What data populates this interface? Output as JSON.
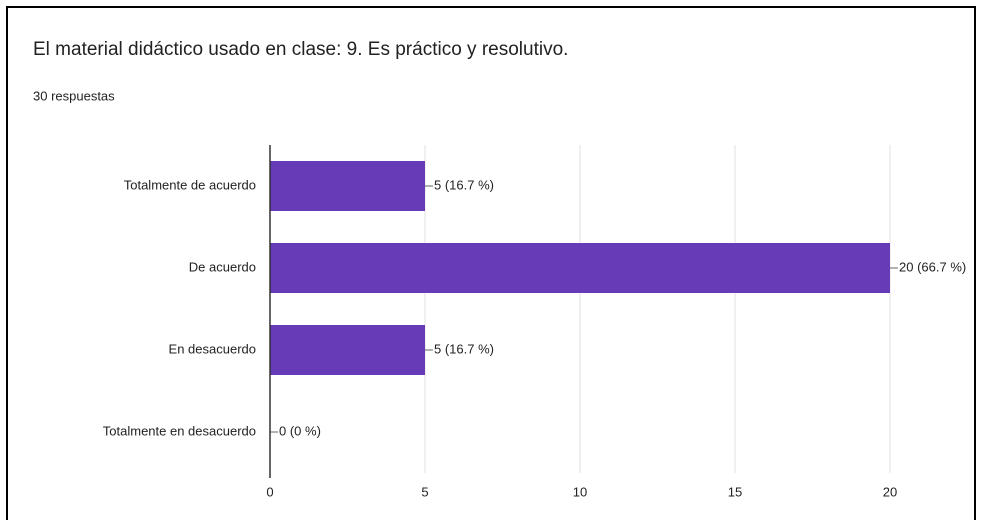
{
  "chart_data": {
    "type": "bar",
    "orientation": "horizontal",
    "title": "El material didáctico usado en clase: 9. Es práctico y resolutivo.",
    "subtitle": "30 respuestas",
    "categories": [
      "Totalmente de acuerdo",
      "De acuerdo",
      "En desacuerdo",
      "Totalmente en desacuerdo"
    ],
    "values": [
      5,
      20,
      5,
      0
    ],
    "value_labels": [
      "5 (16.7 %)",
      "20 (66.7 %)",
      "5 (16.7 %)",
      "0 (0 %)"
    ],
    "color": "#673ab7",
    "xlim": [
      0,
      20
    ],
    "xticks": [
      0,
      5,
      10,
      15,
      20
    ],
    "grid": true
  }
}
